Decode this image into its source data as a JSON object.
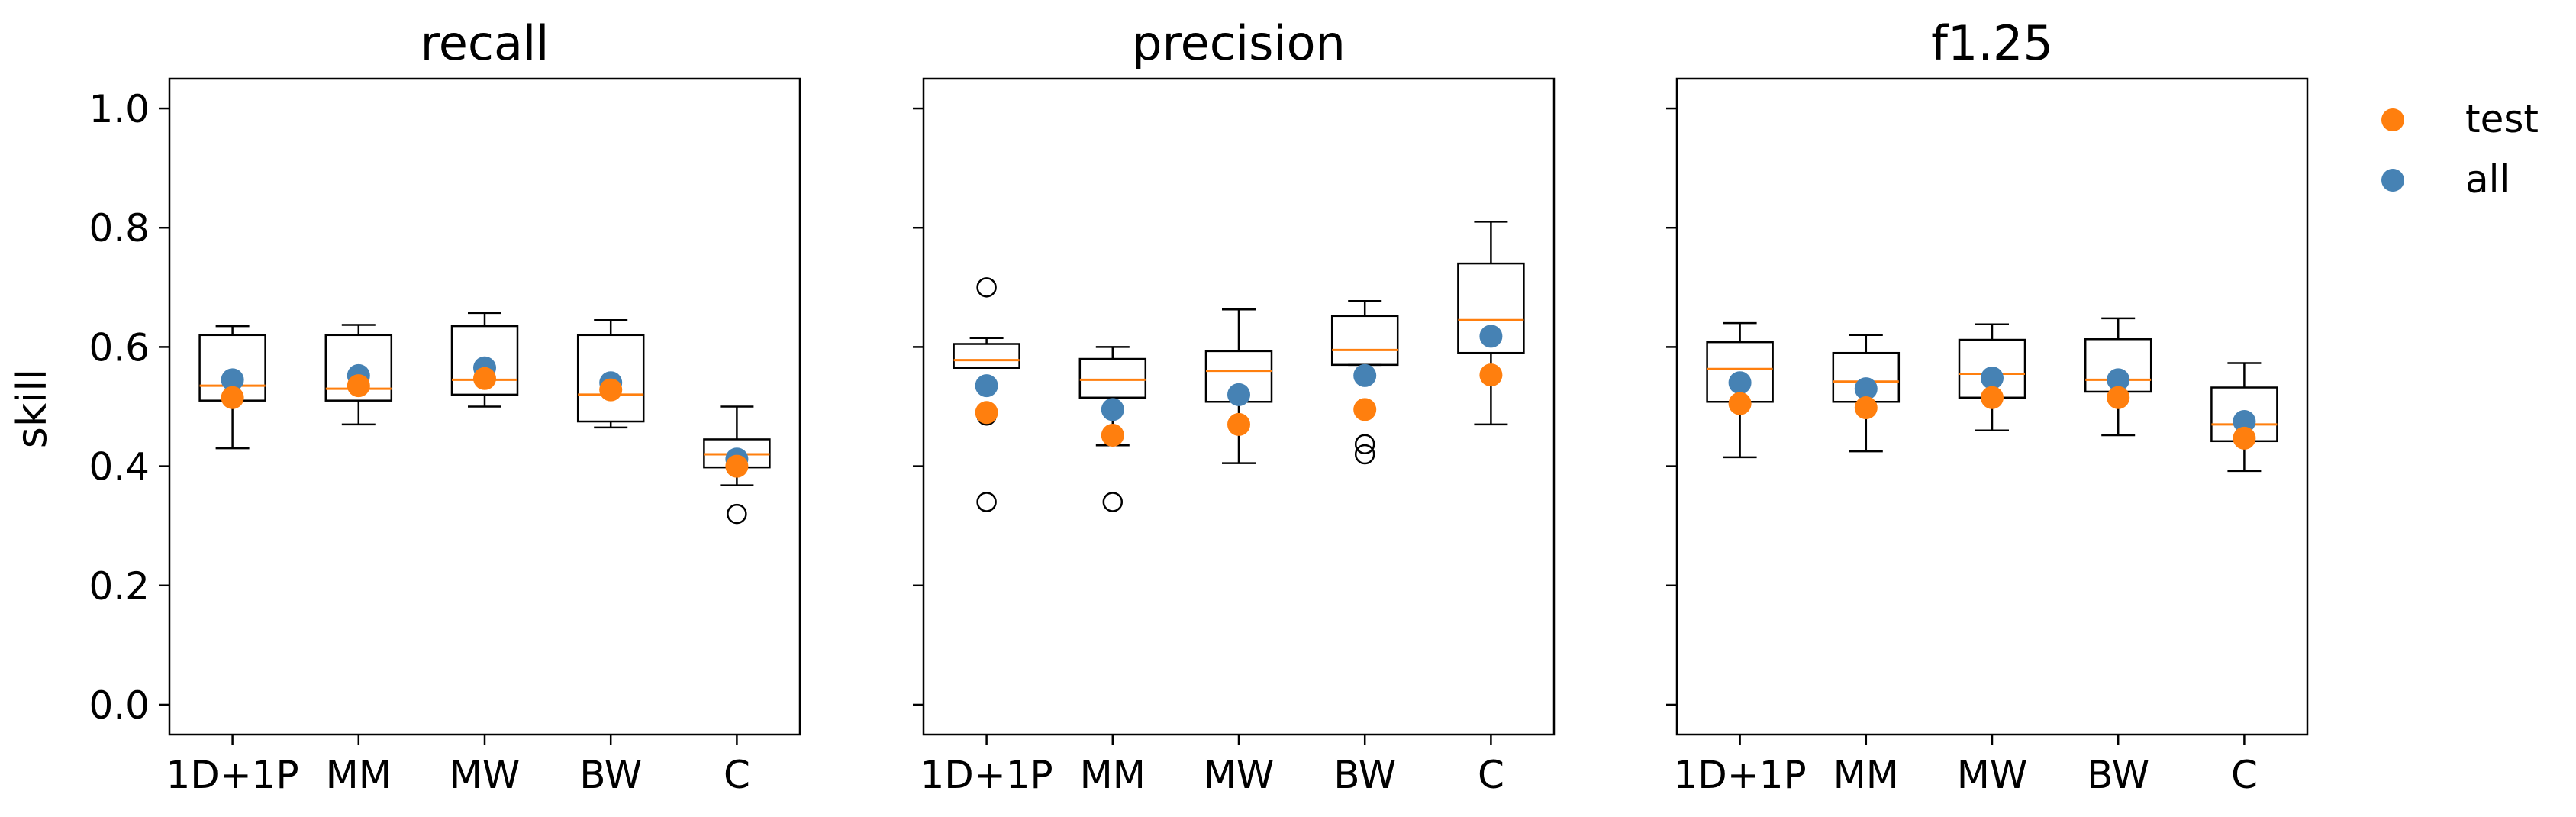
{
  "colors": {
    "test": "#ff7f0e",
    "all": "#4682b4",
    "median": "#ff7f0e",
    "box": "#000000"
  },
  "legend": {
    "placement": "top-right, outside plot area",
    "items": [
      {
        "label": "test",
        "color": "#ff7f0e"
      },
      {
        "label": "all",
        "color": "#4682b4"
      }
    ]
  },
  "chart_data": [
    {
      "type": "box",
      "title": "recall",
      "ylabel": "skill",
      "ylim": [
        -0.05,
        1.05
      ],
      "yticks": [
        "0.0",
        "0.2",
        "0.4",
        "0.6",
        "0.8",
        "1.0"
      ],
      "categories": [
        "1D+1P",
        "MM",
        "MW",
        "BW",
        "C"
      ],
      "boxes": [
        {
          "whislo": 0.43,
          "q1": 0.51,
          "med": 0.535,
          "q3": 0.62,
          "whishi": 0.635,
          "fliers": []
        },
        {
          "whislo": 0.47,
          "q1": 0.51,
          "med": 0.53,
          "q3": 0.62,
          "whishi": 0.637,
          "fliers": []
        },
        {
          "whislo": 0.5,
          "q1": 0.52,
          "med": 0.545,
          "q3": 0.635,
          "whishi": 0.657,
          "fliers": []
        },
        {
          "whislo": 0.465,
          "q1": 0.475,
          "med": 0.52,
          "q3": 0.62,
          "whishi": 0.645,
          "fliers": []
        },
        {
          "whislo": 0.368,
          "q1": 0.398,
          "med": 0.42,
          "q3": 0.445,
          "whishi": 0.5,
          "fliers": [
            0.32
          ]
        }
      ],
      "series": [
        {
          "name": "all",
          "values": [
            0.545,
            0.552,
            0.565,
            0.54,
            0.412
          ]
        },
        {
          "name": "test",
          "values": [
            0.515,
            0.535,
            0.547,
            0.528,
            0.4
          ]
        }
      ]
    },
    {
      "type": "box",
      "title": "precision",
      "ylim": [
        -0.05,
        1.05
      ],
      "categories": [
        "1D+1P",
        "MM",
        "MW",
        "BW",
        "C"
      ],
      "boxes": [
        {
          "whislo": 0.565,
          "q1": 0.565,
          "med": 0.578,
          "q3": 0.605,
          "whishi": 0.615,
          "fliers": [
            0.7,
            0.485,
            0.34
          ]
        },
        {
          "whislo": 0.435,
          "q1": 0.515,
          "med": 0.545,
          "q3": 0.58,
          "whishi": 0.6,
          "fliers": [
            0.34
          ]
        },
        {
          "whislo": 0.405,
          "q1": 0.508,
          "med": 0.56,
          "q3": 0.593,
          "whishi": 0.663,
          "fliers": []
        },
        {
          "whislo": 0.57,
          "q1": 0.57,
          "med": 0.595,
          "q3": 0.652,
          "whishi": 0.677,
          "fliers": [
            0.437,
            0.42
          ]
        },
        {
          "whislo": 0.47,
          "q1": 0.59,
          "med": 0.645,
          "q3": 0.74,
          "whishi": 0.81,
          "fliers": []
        }
      ],
      "series": [
        {
          "name": "all",
          "values": [
            0.535,
            0.495,
            0.52,
            0.552,
            0.618
          ]
        },
        {
          "name": "test",
          "values": [
            0.49,
            0.452,
            0.47,
            0.495,
            0.553
          ]
        }
      ]
    },
    {
      "type": "box",
      "title": "f1.25",
      "ylim": [
        -0.05,
        1.05
      ],
      "categories": [
        "1D+1P",
        "MM",
        "MW",
        "BW",
        "C"
      ],
      "boxes": [
        {
          "whislo": 0.415,
          "q1": 0.508,
          "med": 0.563,
          "q3": 0.608,
          "whishi": 0.64,
          "fliers": []
        },
        {
          "whislo": 0.425,
          "q1": 0.508,
          "med": 0.542,
          "q3": 0.59,
          "whishi": 0.62,
          "fliers": []
        },
        {
          "whislo": 0.46,
          "q1": 0.515,
          "med": 0.555,
          "q3": 0.612,
          "whishi": 0.638,
          "fliers": []
        },
        {
          "whislo": 0.452,
          "q1": 0.525,
          "med": 0.545,
          "q3": 0.613,
          "whishi": 0.648,
          "fliers": []
        },
        {
          "whislo": 0.392,
          "q1": 0.442,
          "med": 0.47,
          "q3": 0.532,
          "whishi": 0.573,
          "fliers": []
        }
      ],
      "series": [
        {
          "name": "all",
          "values": [
            0.54,
            0.53,
            0.548,
            0.545,
            0.475
          ]
        },
        {
          "name": "test",
          "values": [
            0.505,
            0.498,
            0.515,
            0.515,
            0.447
          ]
        }
      ]
    }
  ]
}
